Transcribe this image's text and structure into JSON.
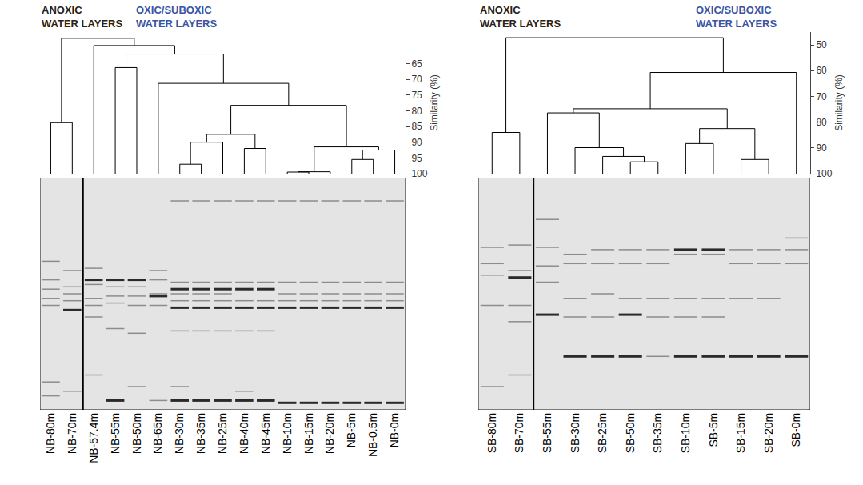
{
  "chart_data": [
    {
      "type": "dendrogram",
      "headings": [
        {
          "lines": [
            "ANOXIC",
            "WATER LAYERS"
          ],
          "color": "#2b2215"
        },
        {
          "lines": [
            "OXIC/SUBOXIC",
            "WATER LAYERS"
          ],
          "color": "#3a55a4"
        }
      ],
      "y_label": "Similarity (%)",
      "ylim": [
        55,
        100
      ],
      "yticks": [
        65,
        70,
        75,
        80,
        85,
        90,
        95,
        100
      ],
      "categories": [
        "NB-80m",
        "NB-70m",
        "NB-57.4m",
        "NB-55m",
        "NB-50m",
        "NB-65m",
        "NB-30m",
        "NB-35m",
        "NB-25m",
        "NB-40m",
        "NB-45m",
        "NB-10m",
        "NB-15m",
        "NB-20m",
        "NB-5m",
        "NB-0.5m",
        "NB-0m"
      ],
      "merges": [
        {
          "join": [
            [
              "NB-10m"
            ],
            [
              "NB-15m"
            ]
          ],
          "similarity": 99.5
        },
        {
          "join": [
            [
              "NB-10m",
              "NB-15m"
            ],
            [
              "NB-20m"
            ]
          ],
          "similarity": 99.4
        },
        {
          "join": [
            [
              "NB-30m"
            ],
            [
              "NB-35m"
            ]
          ],
          "similarity": 97
        },
        {
          "join": [
            [
              "NB-5m"
            ],
            [
              "NB-0.5m"
            ]
          ],
          "similarity": 95.5
        },
        {
          "join": [
            [
              "NB-5m",
              "NB-0.5m"
            ],
            [
              "NB-0m"
            ]
          ],
          "similarity": 92.5
        },
        {
          "join": [
            [
              "NB-40m"
            ],
            [
              "NB-45m"
            ]
          ],
          "similarity": 92
        },
        {
          "join": [
            [
              "NB-10m",
              "NB-15m",
              "NB-20m"
            ],
            [
              "NB-5m",
              "NB-0.5m",
              "NB-0m"
            ]
          ],
          "similarity": 91.5
        },
        {
          "join": [
            [
              "NB-30m",
              "NB-35m"
            ],
            [
              "NB-25m"
            ]
          ],
          "similarity": 90
        },
        {
          "join": [
            [
              "NB-30m",
              "NB-35m",
              "NB-25m"
            ],
            [
              "NB-40m",
              "NB-45m"
            ]
          ],
          "similarity": 87.5
        },
        {
          "join": [
            [
              "NB-80m"
            ],
            [
              "NB-70m"
            ]
          ],
          "similarity": 83.8
        },
        {
          "join": [
            [
              "NB-30m",
              "NB-35m",
              "NB-25m",
              "NB-40m",
              "NB-45m"
            ],
            [
              "NB-10m",
              "NB-15m",
              "NB-20m",
              "NB-5m",
              "NB-0.5m",
              "NB-0m"
            ]
          ],
          "similarity": 78.3
        },
        {
          "join": [
            [
              "NB-65m"
            ],
            [
              "NB-30m",
              "NB-35m",
              "NB-25m",
              "NB-40m",
              "NB-45m",
              "NB-10m",
              "NB-15m",
              "NB-20m",
              "NB-5m",
              "NB-0.5m",
              "NB-0m"
            ]
          ],
          "similarity": 71.3
        },
        {
          "join": [
            [
              "NB-55m"
            ],
            [
              "NB-50m"
            ]
          ],
          "similarity": 66.3
        },
        {
          "join": [
            [
              "NB-55m",
              "NB-50m"
            ],
            [
              "NB-65m",
              "NB-30m",
              "NB-35m",
              "NB-25m",
              "NB-40m",
              "NB-45m",
              "NB-10m",
              "NB-15m",
              "NB-20m",
              "NB-5m",
              "NB-0.5m",
              "NB-0m"
            ]
          ],
          "similarity": 62
        },
        {
          "join": [
            [
              "NB-57.4m"
            ],
            [
              "NB-55m",
              "NB-50m",
              "NB-65m",
              "NB-30m",
              "NB-35m",
              "NB-25m",
              "NB-40m",
              "NB-45m",
              "NB-10m",
              "NB-15m",
              "NB-20m",
              "NB-5m",
              "NB-0.5m",
              "NB-0m"
            ]
          ],
          "similarity": 59.3
        },
        {
          "join": [
            [
              "NB-80m",
              "NB-70m"
            ],
            [
              "NB-57.4m",
              "NB-55m",
              "NB-50m",
              "NB-65m",
              "NB-30m",
              "NB-35m",
              "NB-25m",
              "NB-40m",
              "NB-45m",
              "NB-10m",
              "NB-15m",
              "NB-20m",
              "NB-5m",
              "NB-0.5m",
              "NB-0m"
            ]
          ],
          "similarity": 57
        }
      ],
      "band_range": [
        0,
        100
      ],
      "bands": [
        [
          36,
          44,
          48,
          52,
          55,
          88,
          94
        ],
        [
          40,
          47,
          50,
          53,
          92
        ],
        [
          39,
          46,
          52,
          55,
          60,
          85
        ],
        [
          47,
          51,
          54,
          65
        ],
        [
          47,
          51,
          55,
          67,
          90
        ],
        [
          40,
          44,
          50,
          55,
          96
        ],
        [
          10,
          45,
          50,
          53,
          66,
          90
        ],
        [
          10,
          45,
          50,
          53,
          66
        ],
        [
          10,
          45,
          50,
          53,
          66
        ],
        [
          10,
          45,
          53,
          66,
          92
        ],
        [
          10,
          45,
          53,
          66
        ],
        [
          10,
          45,
          50,
          53
        ],
        [
          10,
          45,
          50,
          53
        ],
        [
          10,
          45,
          50,
          53
        ],
        [
          10,
          45,
          50,
          53
        ],
        [
          10,
          45,
          50,
          53
        ],
        [
          10,
          45,
          50,
          53
        ]
      ],
      "strong_bands": [
        [],
        [
          57
        ],
        [
          44
        ],
        [
          44,
          96
        ],
        [
          44
        ],
        [
          51
        ],
        [
          48,
          56,
          96
        ],
        [
          48,
          56,
          96
        ],
        [
          48,
          56,
          96
        ],
        [
          48,
          56,
          96
        ],
        [
          48,
          56,
          96
        ],
        [
          56,
          97
        ],
        [
          56,
          97
        ],
        [
          56,
          97
        ],
        [
          56,
          97
        ],
        [
          56,
          97
        ],
        [
          56,
          97
        ]
      ]
    },
    {
      "type": "dendrogram",
      "headings": [
        {
          "lines": [
            "ANOXIC",
            "WATER LAYERS"
          ],
          "color": "#2b2215"
        },
        {
          "lines": [
            "OXIC/SUBOXIC",
            "WATER LAYERS"
          ],
          "color": "#3a55a4"
        }
      ],
      "y_label": "Similarity (%)",
      "ylim": [
        45,
        100
      ],
      "yticks": [
        50,
        60,
        70,
        80,
        90,
        100
      ],
      "categories": [
        "SB-80m",
        "SB-70m",
        "SB-55m",
        "SB-30m",
        "SB-25m",
        "SB-50m",
        "SB-35m",
        "SB-10m",
        "SB-5m",
        "SB-15m",
        "SB-20m",
        "SB-0m"
      ],
      "merges": [
        {
          "join": [
            [
              "SB-50m"
            ],
            [
              "SB-35m"
            ]
          ],
          "similarity": 95.4
        },
        {
          "join": [
            [
              "SB-15m"
            ],
            [
              "SB-20m"
            ]
          ],
          "similarity": 94.5
        },
        {
          "join": [
            [
              "SB-25m"
            ],
            [
              "SB-50m",
              "SB-35m"
            ]
          ],
          "similarity": 93.3
        },
        {
          "join": [
            [
              "SB-30m"
            ],
            [
              "SB-25m",
              "SB-50m",
              "SB-35m"
            ]
          ],
          "similarity": 89.9
        },
        {
          "join": [
            [
              "SB-10m"
            ],
            [
              "SB-5m"
            ]
          ],
          "similarity": 88.3
        },
        {
          "join": [
            [
              "SB-80m"
            ],
            [
              "SB-70m"
            ]
          ],
          "similarity": 84
        },
        {
          "join": [
            [
              "SB-10m",
              "SB-5m"
            ],
            [
              "SB-15m",
              "SB-20m"
            ]
          ],
          "similarity": 82.5
        },
        {
          "join": [
            [
              "SB-55m"
            ],
            [
              "SB-30m",
              "SB-25m",
              "SB-50m",
              "SB-35m"
            ]
          ],
          "similarity": 76.4
        },
        {
          "join": [
            [
              "SB-55m",
              "SB-30m",
              "SB-25m",
              "SB-50m",
              "SB-35m"
            ],
            [
              "SB-10m",
              "SB-5m",
              "SB-15m",
              "SB-20m"
            ]
          ],
          "similarity": 74.8
        },
        {
          "join": [
            [
              "SB-55m",
              "SB-30m",
              "SB-25m",
              "SB-50m",
              "SB-35m",
              "SB-10m",
              "SB-5m",
              "SB-15m",
              "SB-20m"
            ],
            [
              "SB-0m"
            ]
          ],
          "similarity": 60.7
        },
        {
          "join": [
            [
              "SB-80m",
              "SB-70m"
            ],
            [
              "SB-55m",
              "SB-30m",
              "SB-25m",
              "SB-50m",
              "SB-35m",
              "SB-10m",
              "SB-5m",
              "SB-15m",
              "SB-20m",
              "SB-0m"
            ]
          ],
          "similarity": 47.2
        }
      ],
      "band_range": [
        0,
        100
      ],
      "bands": [
        [
          30,
          37,
          42,
          55,
          90
        ],
        [
          29,
          40,
          55,
          62,
          85
        ],
        [
          18,
          30,
          38,
          45
        ],
        [
          33,
          37,
          52,
          60
        ],
        [
          31,
          37,
          50,
          60
        ],
        [
          31,
          37,
          52
        ],
        [
          31,
          37,
          52,
          60,
          77
        ],
        [
          33,
          52,
          60
        ],
        [
          33,
          52,
          60
        ],
        [
          31,
          37,
          52
        ],
        [
          31,
          37,
          52
        ],
        [
          26,
          31,
          37
        ]
      ],
      "strong_bands": [
        [],
        [
          43
        ],
        [
          59
        ],
        [
          77
        ],
        [
          77
        ],
        [
          59,
          77
        ],
        [],
        [
          31,
          77
        ],
        [
          31,
          77
        ],
        [
          77
        ],
        [
          77
        ],
        [
          77
        ]
      ]
    }
  ]
}
